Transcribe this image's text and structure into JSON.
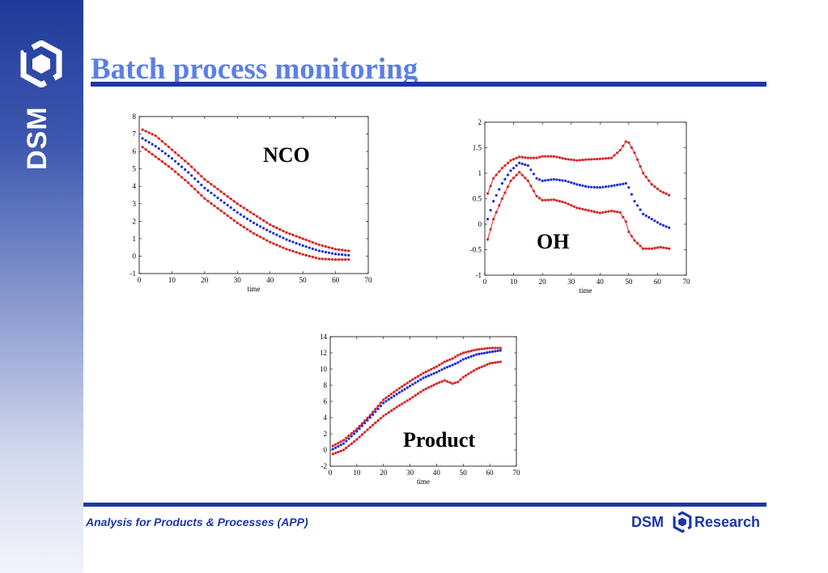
{
  "sidebar": {
    "brand": "DSM"
  },
  "header": {
    "title": "Batch process monitoring"
  },
  "footer": {
    "text": "Analysis for Products & Processes (APP)",
    "brand": "DSM",
    "brand_suffix": "Research"
  },
  "colors": {
    "accent": "#1c36a8",
    "title": "#5b7fe6",
    "limit_series": "#d62828",
    "mean_series": "#1c2fd6"
  },
  "icons": {
    "logo": "dsm-hexagon-icon"
  },
  "chart_data": [
    {
      "type": "scatter",
      "label": "NCO",
      "xlabel": "time",
      "ylabel": "",
      "xlim": [
        0,
        70
      ],
      "ylim": [
        -1,
        8
      ],
      "xticks": [
        0,
        10,
        20,
        30,
        40,
        50,
        60,
        70
      ],
      "yticks": [
        -1,
        0,
        1,
        2,
        3,
        4,
        5,
        6,
        7,
        8
      ],
      "x": [
        1,
        5,
        10,
        15,
        20,
        25,
        30,
        35,
        40,
        45,
        50,
        55,
        60,
        64
      ],
      "series": [
        {
          "role": "upper",
          "values": [
            7.25,
            6.9,
            6.1,
            5.3,
            4.4,
            3.7,
            3.0,
            2.4,
            1.8,
            1.35,
            1.0,
            0.65,
            0.4,
            0.3
          ]
        },
        {
          "role": "mean",
          "values": [
            6.75,
            6.3,
            5.6,
            4.8,
            3.9,
            3.2,
            2.5,
            1.9,
            1.4,
            0.95,
            0.6,
            0.3,
            0.12,
            0.05
          ]
        },
        {
          "role": "lower",
          "values": [
            6.25,
            5.7,
            5.0,
            4.2,
            3.3,
            2.6,
            1.9,
            1.3,
            0.8,
            0.4,
            0.1,
            -0.15,
            -0.2,
            -0.2
          ]
        }
      ]
    },
    {
      "type": "scatter",
      "label": "OH",
      "xlabel": "time",
      "ylabel": "",
      "xlim": [
        0,
        70
      ],
      "ylim": [
        -1,
        2
      ],
      "xticks": [
        0,
        10,
        20,
        30,
        40,
        50,
        60,
        70
      ],
      "yticks": [
        -1,
        -0.5,
        0,
        0.5,
        1,
        1.5,
        2
      ],
      "x": [
        1,
        3,
        6,
        9,
        12,
        15,
        18,
        20,
        24,
        28,
        32,
        36,
        40,
        44,
        47,
        49,
        50,
        52,
        55,
        58,
        61,
        64
      ],
      "series": [
        {
          "role": "upper",
          "values": [
            0.6,
            0.9,
            1.1,
            1.25,
            1.32,
            1.3,
            1.3,
            1.33,
            1.33,
            1.28,
            1.25,
            1.27,
            1.28,
            1.3,
            1.45,
            1.62,
            1.6,
            1.4,
            1.0,
            0.78,
            0.65,
            0.57
          ]
        },
        {
          "role": "mean",
          "values": [
            0.1,
            0.45,
            0.8,
            1.05,
            1.2,
            1.15,
            0.9,
            0.85,
            0.88,
            0.85,
            0.78,
            0.73,
            0.72,
            0.75,
            0.78,
            0.8,
            0.72,
            0.45,
            0.2,
            0.1,
            0.0,
            -0.07
          ]
        },
        {
          "role": "lower",
          "values": [
            -0.3,
            0.1,
            0.5,
            0.85,
            1.02,
            0.85,
            0.55,
            0.47,
            0.48,
            0.42,
            0.32,
            0.27,
            0.22,
            0.26,
            0.23,
            0.05,
            -0.15,
            -0.32,
            -0.48,
            -0.48,
            -0.45,
            -0.48
          ]
        }
      ]
    },
    {
      "type": "scatter",
      "label": "Product",
      "xlabel": "time",
      "ylabel": "",
      "xlim": [
        0,
        70
      ],
      "ylim": [
        -2,
        14
      ],
      "xticks": [
        0,
        10,
        20,
        30,
        40,
        50,
        60,
        70
      ],
      "yticks": [
        -2,
        0,
        2,
        4,
        6,
        8,
        10,
        12,
        14
      ],
      "x": [
        1,
        5,
        10,
        15,
        20,
        25,
        30,
        35,
        40,
        43,
        46,
        48,
        50,
        55,
        60,
        64
      ],
      "series": [
        {
          "role": "upper",
          "values": [
            0.5,
            1.2,
            2.6,
            4.3,
            6.2,
            7.4,
            8.5,
            9.5,
            10.3,
            10.9,
            11.3,
            11.7,
            12.0,
            12.4,
            12.6,
            12.6
          ]
        },
        {
          "role": "mean",
          "values": [
            0.1,
            0.8,
            2.3,
            4.0,
            5.8,
            6.9,
            7.9,
            8.9,
            9.6,
            10.1,
            10.5,
            10.8,
            11.2,
            11.8,
            12.1,
            12.3
          ]
        },
        {
          "role": "lower",
          "values": [
            -0.5,
            0.0,
            1.3,
            2.8,
            4.2,
            5.3,
            6.3,
            7.4,
            8.2,
            8.6,
            8.2,
            8.4,
            9.0,
            10.0,
            10.7,
            10.9
          ]
        }
      ]
    }
  ]
}
